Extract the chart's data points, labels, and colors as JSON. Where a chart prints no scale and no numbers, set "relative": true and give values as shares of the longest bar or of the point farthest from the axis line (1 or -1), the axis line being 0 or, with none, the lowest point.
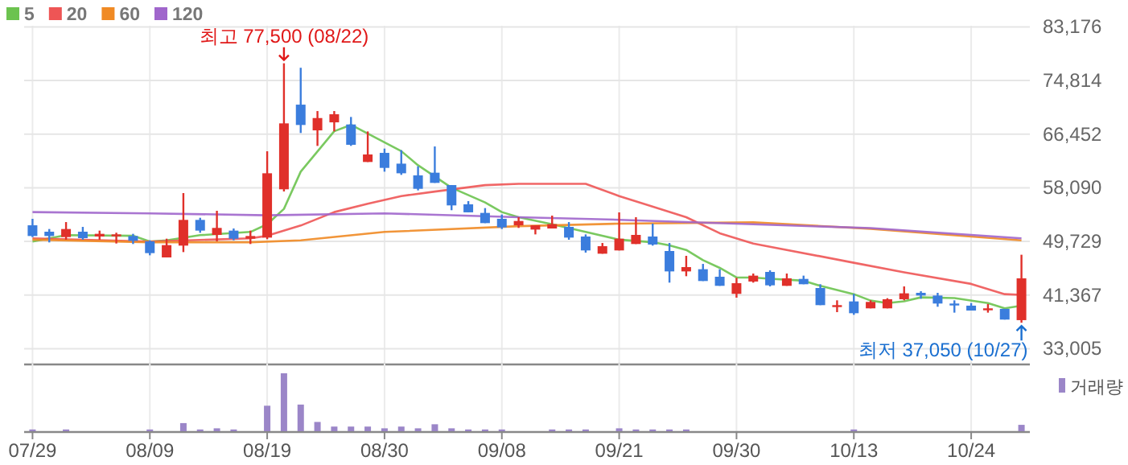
{
  "chart_data": [
    {
      "type": "candlestick",
      "categories": [
        null,
        null,
        null,
        null,
        null,
        null,
        null,
        null,
        null,
        null,
        null,
        null,
        null,
        null,
        null,
        null,
        null,
        null,
        null,
        null,
        null,
        null,
        null,
        null,
        null,
        null,
        null,
        null,
        null,
        null,
        null,
        null,
        null,
        null,
        null,
        null,
        null,
        null,
        null,
        null,
        null,
        null,
        null,
        null,
        null,
        null,
        null,
        null,
        null,
        null,
        null,
        null,
        null,
        null,
        null,
        null,
        null,
        null,
        null,
        null
      ],
      "ohlc": [
        [
          52240,
          53250,
          50400,
          50570
        ],
        [
          51240,
          51660,
          49570,
          50570
        ],
        [
          50400,
          52740,
          49990,
          51660
        ],
        [
          51240,
          51990,
          49990,
          50240
        ],
        [
          50490,
          51410,
          49990,
          50910
        ],
        [
          50660,
          51080,
          49400,
          50820
        ],
        [
          50570,
          50910,
          49320,
          49820
        ],
        [
          49740,
          49900,
          47560,
          47900
        ],
        [
          47230,
          50150,
          47230,
          49150
        ],
        [
          49070,
          57260,
          48060,
          53080
        ],
        [
          53080,
          53410,
          51070,
          51410
        ],
        [
          50740,
          54500,
          49740,
          51830
        ],
        [
          51410,
          51740,
          49900,
          50150
        ],
        [
          50150,
          51410,
          49320,
          50570
        ],
        [
          50320,
          63780,
          50070,
          60350
        ],
        [
          57850,
          77500,
          57510,
          68130
        ],
        [
          71050,
          76800,
          66630,
          67880
        ],
        [
          67040,
          70050,
          64620,
          68960
        ],
        [
          68290,
          70050,
          66880,
          69550
        ],
        [
          67960,
          69130,
          64620,
          64790
        ],
        [
          62110,
          66870,
          62110,
          63280
        ],
        [
          63530,
          64200,
          60600,
          61190
        ],
        [
          61850,
          63950,
          60100,
          60350
        ],
        [
          60020,
          61440,
          57680,
          57930
        ],
        [
          60440,
          64530,
          58850,
          58850
        ],
        [
          58510,
          58510,
          54590,
          55340
        ],
        [
          55510,
          56010,
          54250,
          54260
        ],
        [
          54170,
          54920,
          52580,
          52580
        ],
        [
          53250,
          53920,
          51660,
          51910
        ],
        [
          52240,
          53500,
          51830,
          52910
        ],
        [
          51570,
          52240,
          50820,
          52240
        ],
        [
          51740,
          53750,
          51740,
          52410
        ],
        [
          51990,
          52740,
          49990,
          50320
        ],
        [
          50490,
          50820,
          47980,
          48320
        ],
        [
          47810,
          49480,
          47810,
          48980
        ],
        [
          48320,
          54250,
          48320,
          50150
        ],
        [
          49320,
          53500,
          49320,
          50740
        ],
        [
          50490,
          52500,
          49070,
          49240
        ],
        [
          48230,
          49480,
          43300,
          45050
        ],
        [
          45050,
          47480,
          44300,
          45720
        ],
        [
          45390,
          46220,
          43550,
          43550
        ],
        [
          44220,
          45390,
          42800,
          42800
        ],
        [
          41550,
          44050,
          40960,
          43210
        ],
        [
          43470,
          44720,
          43300,
          44390
        ],
        [
          44970,
          45220,
          42710,
          42880
        ],
        [
          42800,
          44720,
          42800,
          43970
        ],
        [
          43880,
          44390,
          43050,
          43050
        ],
        [
          42460,
          43050,
          39790,
          39790
        ],
        [
          39620,
          40540,
          38700,
          39790
        ],
        [
          40370,
          41540,
          38280,
          38530
        ],
        [
          39290,
          40540,
          39290,
          40290
        ],
        [
          39290,
          40870,
          39290,
          40710
        ],
        [
          40710,
          42710,
          40540,
          41630
        ],
        [
          41710,
          41960,
          40790,
          41290
        ],
        [
          41290,
          41710,
          39540,
          40040
        ],
        [
          40040,
          40540,
          38620,
          39790
        ],
        [
          39710,
          40120,
          38950,
          38950
        ],
        [
          39040,
          39960,
          38620,
          39290
        ],
        [
          39210,
          39210,
          37540,
          37540
        ],
        [
          37450,
          47650,
          37050,
          43970
        ]
      ],
      "colors": [
        "#3b7ddd",
        "#3b7ddd",
        "#e0302a",
        "#3b7ddd",
        "#e0302a",
        "#e0302a",
        "#3b7ddd",
        "#3b7ddd",
        "#e0302a",
        "#e0302a",
        "#3b7ddd",
        "#e0302a",
        "#3b7ddd",
        "#e0302a",
        "#e0302a",
        "#e0302a",
        "#3b7ddd",
        "#e0302a",
        "#e0302a",
        "#3b7ddd",
        "#e0302a",
        "#3b7ddd",
        "#3b7ddd",
        "#3b7ddd",
        "#3b7ddd",
        "#3b7ddd",
        "#3b7ddd",
        "#3b7ddd",
        "#3b7ddd",
        "#e0302a",
        "#e0302a",
        "#e0302a",
        "#3b7ddd",
        "#3b7ddd",
        "#e0302a",
        "#e0302a",
        "#e0302a",
        "#3b7ddd",
        "#3b7ddd",
        "#e0302a",
        "#3b7ddd",
        "#3b7ddd",
        "#e0302a",
        "#e0302a",
        "#3b7ddd",
        "#e0302a",
        "#3b7ddd",
        "#3b7ddd",
        "#e0302a",
        "#3b7ddd",
        "#e0302a",
        "#e0302a",
        "#e0302a",
        "#3b7ddd",
        "#3b7ddd",
        "#3b7ddd",
        "#3b7ddd",
        "#e0302a",
        "#3b7ddd",
        "#e0302a"
      ],
      "series": [
        {
          "name": "5",
          "type": "line",
          "color": "#6cc34f",
          "values": [
            49700,
            null,
            50700,
            null,
            null,
            null,
            50600,
            49700,
            49900,
            null,
            50700,
            null,
            null,
            51200,
            52400,
            54800,
            60600,
            null,
            66900,
            67900,
            null,
            null,
            63800,
            61600,
            null,
            58100,
            null,
            55800,
            54300,
            53500,
            null,
            52400,
            null,
            51200,
            null,
            50000,
            null,
            49600,
            49100,
            48400,
            46800,
            45600,
            44100,
            44100,
            43900,
            null,
            43600,
            42800,
            null,
            41500,
            40500,
            40100,
            40400,
            41000,
            null,
            40900,
            null,
            40100,
            39300,
            39700
          ]
        },
        {
          "name": "20",
          "type": "line",
          "color": "#ee5555",
          "values": [
            50200,
            null,
            null,
            null,
            null,
            null,
            null,
            49700,
            null,
            null,
            null,
            null,
            null,
            50200,
            50600,
            null,
            52200,
            null,
            54300,
            null,
            55600,
            null,
            56800,
            null,
            57500,
            null,
            null,
            58500,
            null,
            58700,
            null,
            null,
            null,
            58700,
            null,
            56800,
            null,
            null,
            null,
            53500,
            null,
            51000,
            null,
            49400,
            48900,
            null,
            null,
            null,
            null,
            46400,
            null,
            null,
            44900,
            null,
            null,
            null,
            43100,
            null,
            41500,
            41400
          ]
        },
        {
          "name": "60",
          "type": "line",
          "color": "#f08a24",
          "values": [
            50000,
            null,
            null,
            null,
            null,
            null,
            null,
            49600,
            null,
            null,
            null,
            null,
            null,
            49600,
            null,
            null,
            49900,
            null,
            null,
            null,
            null,
            51200,
            null,
            null,
            null,
            null,
            null,
            null,
            null,
            52100,
            null,
            null,
            null,
            null,
            null,
            52500,
            null,
            null,
            null,
            null,
            null,
            null,
            null,
            52700,
            null,
            null,
            null,
            null,
            null,
            null,
            51700,
            null,
            null,
            null,
            null,
            null,
            null,
            null,
            null,
            49900
          ]
        },
        {
          "name": "120",
          "type": "line",
          "color": "#a066cc",
          "values": [
            54300,
            null,
            null,
            null,
            null,
            null,
            null,
            54100,
            null,
            null,
            null,
            null,
            null,
            null,
            53800,
            null,
            null,
            null,
            null,
            null,
            null,
            54100,
            null,
            null,
            null,
            null,
            null,
            null,
            null,
            53500,
            null,
            null,
            null,
            null,
            null,
            53100,
            null,
            null,
            null,
            null,
            null,
            null,
            null,
            52400,
            null,
            null,
            null,
            null,
            null,
            null,
            51800,
            null,
            null,
            null,
            null,
            null,
            null,
            null,
            null,
            50200
          ]
        }
      ],
      "ylim": [
        30670,
        83176
      ],
      "yticks": [
        {
          "value": 83176,
          "label": "83,176"
        },
        {
          "value": 74814,
          "label": "74,814"
        },
        {
          "value": 66452,
          "label": "66,452"
        },
        {
          "value": 58090,
          "label": "58,090"
        },
        {
          "value": 49729,
          "label": "49,729"
        },
        {
          "value": 41367,
          "label": "41,367"
        },
        {
          "value": 33005,
          "label": "33,005"
        }
      ],
      "annotations": [
        "최고 77,500 (08/22)",
        "최저 37,050 (10/27)"
      ],
      "grid": true,
      "legend": "top left",
      "tick_labels": "y"
    },
    {
      "type": "bar",
      "relative": true,
      "categories": [
        "07/29",
        null,
        null,
        null,
        null,
        null,
        null,
        "08/09",
        null,
        null,
        null,
        null,
        null,
        null,
        "08/19",
        null,
        null,
        null,
        null,
        null,
        null,
        "08/30",
        null,
        null,
        null,
        null,
        null,
        null,
        "09/08",
        null,
        null,
        null,
        null,
        null,
        null,
        "09/21",
        null,
        null,
        null,
        null,
        null,
        null,
        "09/30",
        null,
        null,
        null,
        null,
        null,
        null,
        "10/13",
        null,
        null,
        null,
        null,
        null,
        null,
        "10/24",
        null,
        null,
        null
      ],
      "series": [
        {
          "name": "거래량",
          "color": "#9b86c8",
          "values": [
            0.03,
            null,
            0.03,
            null,
            null,
            null,
            null,
            0.03,
            null,
            0.14,
            0.03,
            0.05,
            0.03,
            null,
            0.44,
            1,
            0.46,
            0.16,
            0.08,
            0.08,
            0.08,
            0.05,
            0.08,
            0.05,
            0.12,
            0.05,
            0.03,
            0.03,
            0.03,
            null,
            null,
            0.03,
            0.03,
            0.03,
            null,
            0.05,
            0.03,
            0.03,
            0.03,
            0.03,
            null,
            null,
            null,
            null,
            null,
            null,
            null,
            null,
            null,
            0.03,
            null,
            null,
            null,
            null,
            null,
            null,
            null,
            null,
            null,
            0.11
          ]
        }
      ],
      "grid": "x",
      "legend": "top right",
      "tick_labels": "x"
    }
  ]
}
